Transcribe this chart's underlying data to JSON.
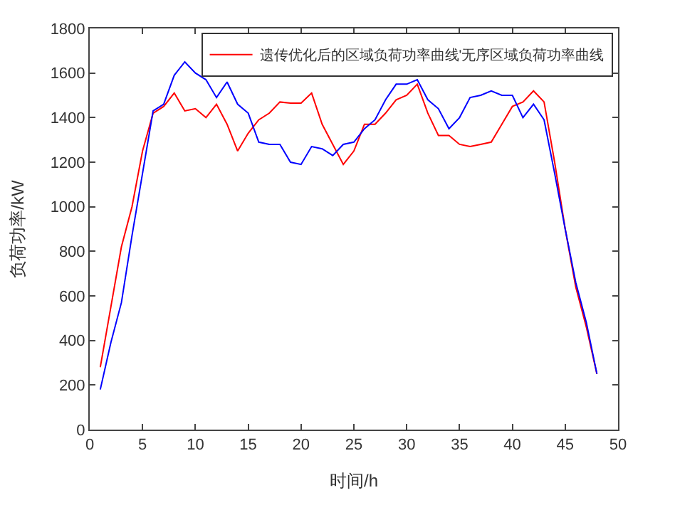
{
  "chart_data": {
    "type": "line",
    "xlabel": "时间/h",
    "ylabel": "负荷功率/kW",
    "x": [
      1,
      2,
      3,
      4,
      5,
      6,
      7,
      8,
      9,
      10,
      11,
      12,
      13,
      14,
      15,
      16,
      17,
      18,
      19,
      20,
      21,
      22,
      23,
      24,
      25,
      26,
      27,
      28,
      29,
      30,
      31,
      32,
      33,
      34,
      35,
      36,
      37,
      38,
      39,
      40,
      41,
      42,
      43,
      44,
      45,
      46,
      47,
      48
    ],
    "series": [
      {
        "name": "遗传优化后的区域负荷功率曲线'无序区域负荷功率曲线",
        "color": "#ff0000",
        "values": [
          280,
          550,
          820,
          1000,
          1250,
          1420,
          1450,
          1510,
          1430,
          1440,
          1400,
          1460,
          1370,
          1250,
          1330,
          1390,
          1420,
          1470,
          1465,
          1465,
          1510,
          1370,
          1280,
          1190,
          1250,
          1370,
          1370,
          1420,
          1480,
          1500,
          1550,
          1420,
          1320,
          1320,
          1280,
          1270,
          1280,
          1290,
          1370,
          1450,
          1470,
          1520,
          1470,
          1200,
          900,
          640,
          460,
          250
        ]
      },
      {
        "color": "#0000ff",
        "values": [
          180,
          390,
          570,
          870,
          1150,
          1430,
          1460,
          1590,
          1650,
          1600,
          1570,
          1490,
          1560,
          1460,
          1420,
          1290,
          1280,
          1280,
          1200,
          1190,
          1270,
          1260,
          1230,
          1280,
          1290,
          1350,
          1390,
          1480,
          1550,
          1550,
          1570,
          1480,
          1440,
          1350,
          1400,
          1490,
          1500,
          1520,
          1500,
          1500,
          1400,
          1460,
          1390,
          1150,
          900,
          660,
          480,
          250
        ]
      }
    ],
    "xlim": [
      0,
      50
    ],
    "xticks": [
      0,
      5,
      10,
      15,
      20,
      25,
      30,
      35,
      40,
      45,
      50
    ],
    "ylim": [
      0,
      1800
    ],
    "yticks": [
      0,
      200,
      400,
      600,
      800,
      1000,
      1200,
      1400,
      1600,
      1800
    ],
    "legend": "top right",
    "marker": "none",
    "line_style": "solid"
  }
}
